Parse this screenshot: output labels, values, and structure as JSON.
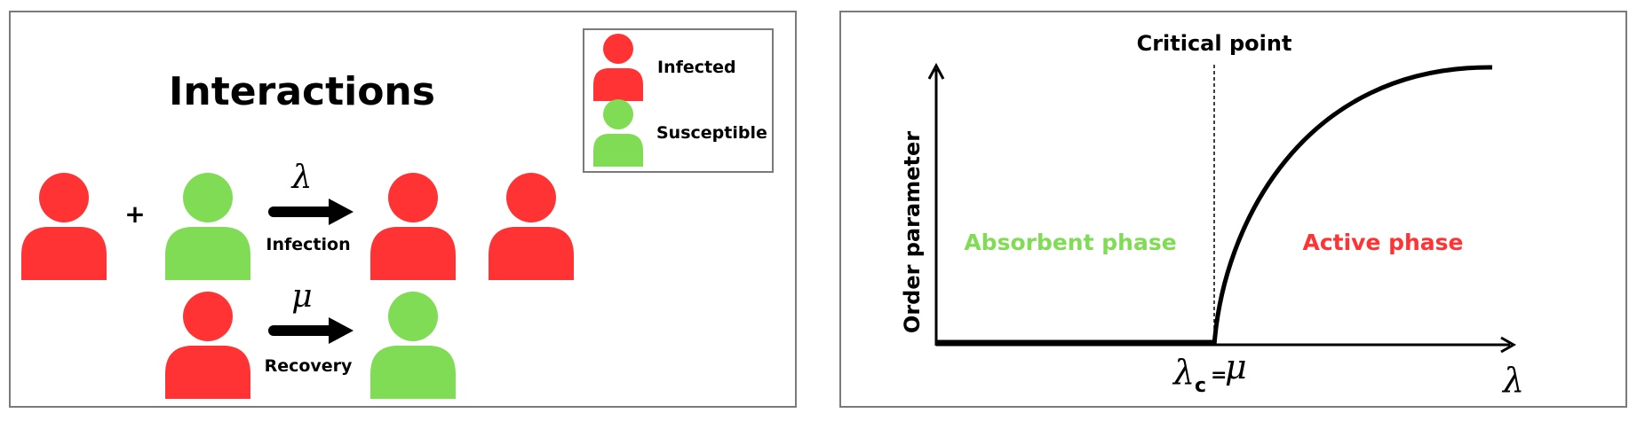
{
  "interactions_panel": {
    "title": "Interactions",
    "infection_rate_symbol": "λ",
    "infection_label": "Infection",
    "recovery_rate_symbol": "μ",
    "recovery_label": "Recovery",
    "plus_sign": "+",
    "legend": {
      "items": [
        {
          "label": "Infected",
          "icon": "person-icon",
          "color": "#ff3333"
        },
        {
          "label": "Susceptible",
          "icon": "person-icon",
          "color": "#80dc55"
        }
      ]
    }
  },
  "phase_panel": {
    "critical_point_label": "Critical point",
    "ylabel": "Order parameter",
    "xlabel": "λ",
    "critical_value_label_main": "λ",
    "critical_value_label_sub": "c",
    "critical_value_label_eq": "=",
    "critical_value_label_rhs": "μ",
    "absorbent_label": "Absorbent phase",
    "active_label": "Active phase"
  },
  "colors": {
    "infected": "#ff3333",
    "susceptible": "#80dc55",
    "border": "#7a7a7a",
    "ink": "#000000"
  }
}
